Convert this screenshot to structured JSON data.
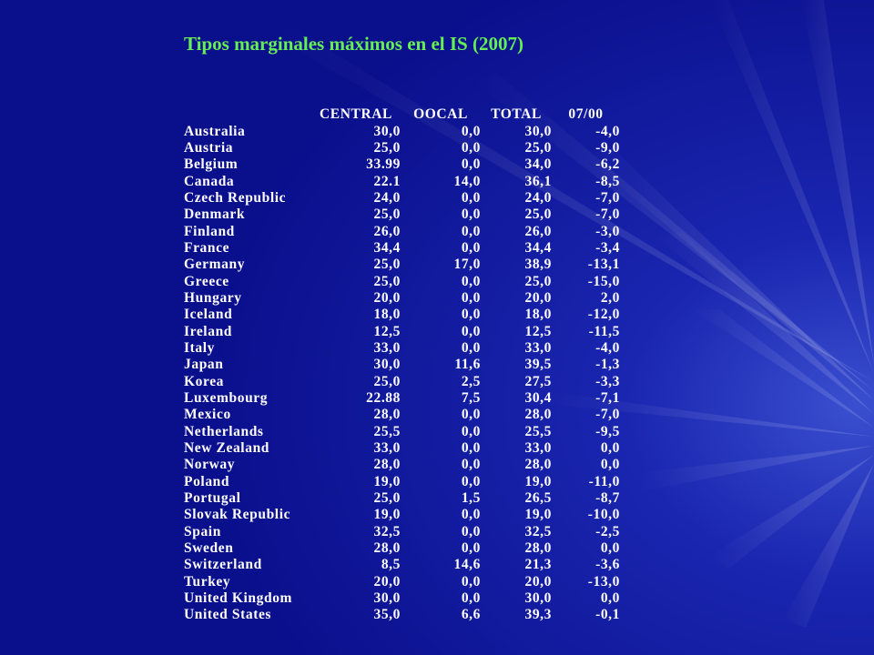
{
  "slide": {
    "title": "Tipos marginales máximos en el IS (2007)"
  },
  "table": {
    "headers": [
      "",
      "CENTRAL",
      "OOCAL",
      "TOTAL",
      "07/00"
    ],
    "rows": [
      {
        "country": "Australia",
        "central": "30,0",
        "oocal": "0,0",
        "total": "30,0",
        "change": "-4,0"
      },
      {
        "country": "Austria",
        "central": "25,0",
        "oocal": "0,0",
        "total": "25,0",
        "change": "-9,0"
      },
      {
        "country": "Belgium",
        "central": "33.99",
        "oocal": "0,0",
        "total": "34,0",
        "change": "-6,2"
      },
      {
        "country": "Canada",
        "central": "22.1",
        "oocal": "14,0",
        "total": "36,1",
        "change": "-8,5"
      },
      {
        "country": "Czech Republic",
        "central": "24,0",
        "oocal": "0,0",
        "total": "24,0",
        "change": "-7,0"
      },
      {
        "country": "Denmark",
        "central": "25,0",
        "oocal": "0,0",
        "total": "25,0",
        "change": "-7,0"
      },
      {
        "country": "Finland",
        "central": "26,0",
        "oocal": "0,0",
        "total": "26,0",
        "change": "-3,0"
      },
      {
        "country": "France",
        "central": "34,4",
        "oocal": "0,0",
        "total": "34,4",
        "change": "-3,4"
      },
      {
        "country": "Germany",
        "central": "25,0",
        "oocal": "17,0",
        "total": "38,9",
        "change": "-13,1"
      },
      {
        "country": "Greece",
        "central": "25,0",
        "oocal": "0,0",
        "total": "25,0",
        "change": "-15,0"
      },
      {
        "country": "Hungary",
        "central": "20,0",
        "oocal": "0,0",
        "total": "20,0",
        "change": "2,0"
      },
      {
        "country": "Iceland",
        "central": "18,0",
        "oocal": "0,0",
        "total": "18,0",
        "change": "-12,0"
      },
      {
        "country": "Ireland",
        "central": "12,5",
        "oocal": "0,0",
        "total": "12,5",
        "change": "-11,5"
      },
      {
        "country": "Italy",
        "central": "33,0",
        "oocal": "0,0",
        "total": "33,0",
        "change": "-4,0"
      },
      {
        "country": "Japan",
        "central": "30,0",
        "oocal": "11,6",
        "total": "39,5",
        "change": "-1,3"
      },
      {
        "country": "Korea",
        "central": "25,0",
        "oocal": "2,5",
        "total": "27,5",
        "change": "-3,3"
      },
      {
        "country": "Luxembourg",
        "central": "22.88",
        "oocal": "7,5",
        "total": "30,4",
        "change": "-7,1"
      },
      {
        "country": "Mexico",
        "central": "28,0",
        "oocal": "0,0",
        "total": "28,0",
        "change": "-7,0"
      },
      {
        "country": "Netherlands",
        "central": "25,5",
        "oocal": "0,0",
        "total": "25,5",
        "change": "-9,5"
      },
      {
        "country": "New Zealand",
        "central": "33,0",
        "oocal": "0,0",
        "total": "33,0",
        "change": "0,0"
      },
      {
        "country": "Norway",
        "central": "28,0",
        "oocal": "0,0",
        "total": "28,0",
        "change": "0,0"
      },
      {
        "country": "Poland",
        "central": "19,0",
        "oocal": "0,0",
        "total": "19,0",
        "change": "-11,0"
      },
      {
        "country": "Portugal",
        "central": "25,0",
        "oocal": "1,5",
        "total": "26,5",
        "change": "-8,7"
      },
      {
        "country": "Slovak Republic",
        "central": "19,0",
        "oocal": "0,0",
        "total": "19,0",
        "change": "-10,0"
      },
      {
        "country": "Spain",
        "central": "32,5",
        "oocal": "0,0",
        "total": "32,5",
        "change": "-2,5"
      },
      {
        "country": "Sweden",
        "central": "28,0",
        "oocal": "0,0",
        "total": "28,0",
        "change": "0,0"
      },
      {
        "country": "Switzerland",
        "central": "8,5",
        "oocal": "14,6",
        "total": "21,3",
        "change": "-3,6"
      },
      {
        "country": "Turkey",
        "central": "20,0",
        "oocal": "0,0",
        "total": "20,0",
        "change": "-13,0"
      },
      {
        "country": "United Kingdom",
        "central": "30,0",
        "oocal": "0,0",
        "total": "30,0",
        "change": "0,0"
      },
      {
        "country": "United States",
        "central": "35,0",
        "oocal": "6,6",
        "total": "39,3",
        "change": "-0,1"
      }
    ]
  },
  "colors": {
    "background": "#0a0f8c",
    "title": "#66ee55",
    "text": "#ffffff"
  }
}
